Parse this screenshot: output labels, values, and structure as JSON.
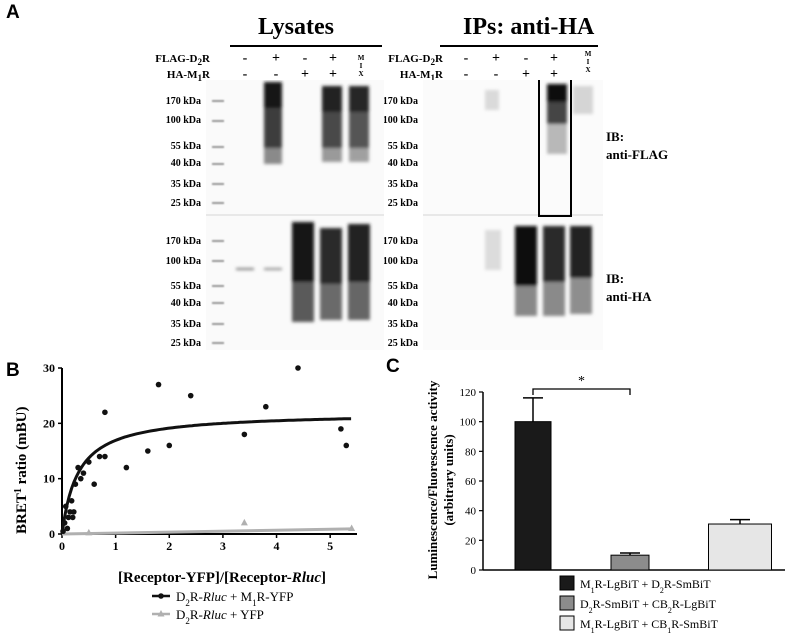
{
  "panels": {
    "a": "A",
    "b": "B",
    "c": "C"
  },
  "blot": {
    "lysates_title": "Lysates",
    "ips_title": "IPs: anti-HA",
    "flag_label": "FLAG-D",
    "flag_sub": "2",
    "flag_tail": "R",
    "ha_label": "HA-M",
    "ha_sub": "1",
    "ha_tail": "R",
    "lanes": [
      {
        "flag": "-",
        "ha": "-"
      },
      {
        "flag": "+",
        "ha": "-"
      },
      {
        "flag": "-",
        "ha": "+"
      },
      {
        "flag": "+",
        "ha": "+"
      },
      {
        "flag": "MIX",
        "ha": ""
      }
    ],
    "mix_letters": [
      "M",
      "I",
      "X"
    ],
    "mw_markers": [
      "170 kDa",
      "100 kDa",
      "55 kDa",
      "40 kDa",
      "35 kDa",
      "25 kDa"
    ],
    "ib_top": {
      "line1": "IB:",
      "line2": "anti-FLAG"
    },
    "ib_bottom": {
      "line1": "IB:",
      "line2": "anti-HA"
    }
  },
  "chart_data": [
    {
      "type": "scatter",
      "panel": "B",
      "xlabel": "[Receptor-YFP]/[Receptor-Rluc]",
      "ylabel": "BRET1 ratio (mBU)",
      "xlim": [
        0,
        5.5
      ],
      "ylim": [
        0,
        30
      ],
      "xticks": [
        0,
        1,
        2,
        3,
        4,
        5
      ],
      "yticks": [
        0,
        10,
        20,
        30
      ],
      "series": [
        {
          "name": "D2R-Rluc + M1R-YFP",
          "color": "#111111",
          "marker": "circle",
          "points": [
            [
              0.02,
              0.5
            ],
            [
              0.05,
              2
            ],
            [
              0.07,
              5
            ],
            [
              0.1,
              1
            ],
            [
              0.12,
              3
            ],
            [
              0.15,
              4
            ],
            [
              0.18,
              6
            ],
            [
              0.2,
              3
            ],
            [
              0.22,
              4
            ],
            [
              0.25,
              9
            ],
            [
              0.3,
              12
            ],
            [
              0.35,
              10
            ],
            [
              0.4,
              11
            ],
            [
              0.5,
              13
            ],
            [
              0.6,
              9
            ],
            [
              0.7,
              14
            ],
            [
              0.8,
              14
            ],
            [
              0.8,
              22
            ],
            [
              1.2,
              12
            ],
            [
              1.6,
              15
            ],
            [
              1.8,
              27
            ],
            [
              2.0,
              16
            ],
            [
              2.4,
              25
            ],
            [
              3.4,
              18
            ],
            [
              3.8,
              23
            ],
            [
              4.4,
              30
            ],
            [
              5.2,
              19
            ],
            [
              5.3,
              16
            ]
          ],
          "fit": "hyperbolic",
          "bmax": 22.0,
          "k": 0.3
        },
        {
          "name": "D2R-Rluc + YFP",
          "color": "#b0b0b0",
          "marker": "triangle",
          "points": [
            [
              0.5,
              0.2
            ],
            [
              3.4,
              2
            ],
            [
              5.4,
              1
            ]
          ],
          "fit": "linear",
          "slope": 0.17
        }
      ],
      "legend": [
        {
          "main": "D",
          "sub": "2",
          "mid": "R-",
          "italic": "Rluc",
          "rest1": " + M",
          "sub2": "1",
          "rest2": "R-YFP"
        },
        {
          "main": "D",
          "sub": "2",
          "mid": "R-",
          "italic": "Rluc",
          "rest1": " + YFP",
          "sub2": "",
          "rest2": ""
        }
      ]
    },
    {
      "type": "bar",
      "panel": "C",
      "ylabel": "Luminescence/Fluorescence activity",
      "ylabel2": "(arbitrary units)",
      "ylim": [
        0,
        120
      ],
      "yticks": [
        0,
        20,
        40,
        60,
        80,
        100,
        120
      ],
      "categories": [
        "M1R-LgBiT + D2R-SmBiT",
        "D2R-SmBiT + CB2R-LgBiT",
        "M1R-LgBiT + CB1R-SmBiT"
      ],
      "values": [
        100,
        10,
        31
      ],
      "errors": [
        16,
        1.5,
        3
      ],
      "colors": [
        "#1a1a1a",
        "#8c8c8c",
        "#e6e6e6"
      ],
      "significance": {
        "between": [
          0,
          1
        ],
        "label": "*"
      },
      "legend": [
        {
          "a": "M",
          "as": "1",
          "b": "R-LgBiT + D",
          "bs": "2",
          "c": "R-SmBiT"
        },
        {
          "a": "D",
          "as": "2",
          "b": "R-SmBiT + CB",
          "bs": "2",
          "c": "R-LgBiT"
        },
        {
          "a": "M",
          "as": "1",
          "b": "R-LgBiT + CB",
          "bs": "1",
          "c": "R-SmBiT"
        }
      ]
    }
  ]
}
